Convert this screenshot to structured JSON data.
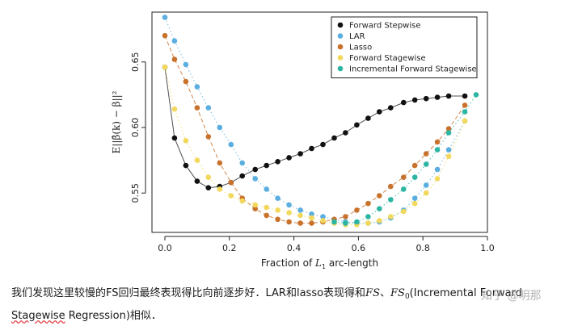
{
  "chart_data": {
    "type": "scatter",
    "xlabel_prefix": "Fraction of ",
    "xlabel_var": "L",
    "xlabel_sub": "1",
    "xlabel_suffix": " arc-length",
    "ylabel": "E||β̂(k) − β||²",
    "xlim": [
      -0.04,
      1.0
    ],
    "ylim": [
      0.52,
      0.688
    ],
    "x_ticks": [
      0.0,
      0.2,
      0.4,
      0.6,
      0.8,
      1.0
    ],
    "x_tick_labels": [
      "0.0",
      "0.2",
      "0.4",
      "0.6",
      "0.8",
      "1.0"
    ],
    "y_ticks": [
      0.55,
      0.6,
      0.65
    ],
    "y_tick_labels": [
      "0.55",
      "0.60",
      "0.65"
    ],
    "grid": false,
    "legend_position": "top-right",
    "series": [
      {
        "name": "Forward Stepwise",
        "color": "#111111",
        "line": "solid",
        "x": [
          0.0,
          0.03,
          0.065,
          0.1,
          0.135,
          0.17,
          0.205,
          0.24,
          0.28,
          0.315,
          0.35,
          0.385,
          0.42,
          0.455,
          0.49,
          0.525,
          0.56,
          0.595,
          0.63,
          0.665,
          0.7,
          0.74,
          0.775,
          0.81,
          0.845,
          0.88,
          0.93
        ],
        "y": [
          0.646,
          0.592,
          0.571,
          0.559,
          0.554,
          0.555,
          0.558,
          0.563,
          0.568,
          0.571,
          0.574,
          0.577,
          0.58,
          0.584,
          0.587,
          0.592,
          0.596,
          0.602,
          0.607,
          0.612,
          0.615,
          0.619,
          0.621,
          0.622,
          0.623,
          0.624,
          0.624
        ]
      },
      {
        "name": "LAR",
        "color": "#5aaee0",
        "line": "dotted",
        "x": [
          0.0,
          0.03,
          0.065,
          0.1,
          0.135,
          0.17,
          0.205,
          0.24,
          0.28,
          0.315,
          0.35,
          0.385,
          0.42,
          0.455,
          0.49,
          0.525,
          0.56,
          0.595,
          0.63,
          0.665,
          0.7,
          0.74,
          0.775,
          0.81,
          0.845,
          0.88,
          0.93
        ],
        "y": [
          0.684,
          0.666,
          0.648,
          0.631,
          0.615,
          0.6,
          0.587,
          0.573,
          0.561,
          0.553,
          0.546,
          0.541,
          0.537,
          0.534,
          0.532,
          0.53,
          0.528,
          0.527,
          0.527,
          0.528,
          0.531,
          0.537,
          0.546,
          0.556,
          0.568,
          0.583,
          0.605
        ]
      },
      {
        "name": "Lasso",
        "color": "#c8722c",
        "line": "dashed",
        "x": [
          0.0,
          0.03,
          0.065,
          0.1,
          0.135,
          0.17,
          0.205,
          0.24,
          0.28,
          0.315,
          0.35,
          0.385,
          0.42,
          0.455,
          0.49,
          0.525,
          0.56,
          0.595,
          0.63,
          0.665,
          0.7,
          0.74,
          0.775,
          0.81,
          0.845,
          0.88,
          0.93
        ],
        "y": [
          0.67,
          0.652,
          0.635,
          0.615,
          0.593,
          0.573,
          0.558,
          0.546,
          0.538,
          0.533,
          0.53,
          0.528,
          0.527,
          0.527,
          0.528,
          0.53,
          0.532,
          0.537,
          0.542,
          0.548,
          0.555,
          0.562,
          0.571,
          0.58,
          0.589,
          0.599,
          0.617
        ]
      },
      {
        "name": "Forward Stagewise",
        "color": "#f2d85c",
        "line": "dotted",
        "x": [
          0.0,
          0.03,
          0.065,
          0.1,
          0.135,
          0.17,
          0.205,
          0.24,
          0.28,
          0.315,
          0.35,
          0.385,
          0.42,
          0.455,
          0.49,
          0.525,
          0.56,
          0.595,
          0.63,
          0.665,
          0.7,
          0.74,
          0.775,
          0.81,
          0.845,
          0.88,
          0.93
        ],
        "y": [
          0.646,
          0.614,
          0.59,
          0.575,
          0.562,
          0.553,
          0.548,
          0.544,
          0.541,
          0.539,
          0.537,
          0.535,
          0.533,
          0.531,
          0.529,
          0.527,
          0.526,
          0.526,
          0.527,
          0.529,
          0.532,
          0.536,
          0.542,
          0.55,
          0.561,
          0.578,
          0.605
        ]
      },
      {
        "name": "Incremental Forward Stagewise",
        "color": "#2bb6a4",
        "line": "dotted",
        "x": [
          0.525,
          0.56,
          0.595,
          0.63,
          0.665,
          0.7,
          0.74,
          0.775,
          0.81,
          0.845,
          0.88,
          0.93,
          0.965
        ],
        "y": [
          0.528,
          0.527,
          0.528,
          0.532,
          0.538,
          0.545,
          0.553,
          0.562,
          0.572,
          0.583,
          0.596,
          0.612,
          0.625
        ]
      }
    ]
  },
  "caption": {
    "part1": "我们发现这里较慢的FS回归最终表现得比向前逐步好．LAR和lasso表现得和",
    "math1": "FS",
    "sep": "、",
    "math2": "FS",
    "math2_sub": "0",
    "part2": "(Incremental Forward",
    "part3_underlined": "Stagewise",
    "part3": " Regression)相似．"
  },
  "watermark": "知乎 @明那"
}
